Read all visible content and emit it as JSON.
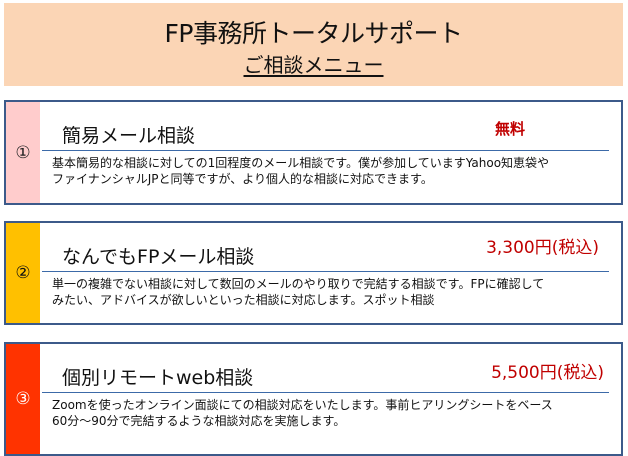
{
  "header": {
    "title": "FP事務所トータルサポート",
    "subtitle": "ご相談メニュー",
    "background": "#fbd5b5"
  },
  "menu": [
    {
      "number": "①",
      "stripe_color": "#ffcccc",
      "heading": "簡易メール相談",
      "price": "無料",
      "description": [
        "基本簡易的な相談に対しての1回程度のメール相談です。僕が参加していますYahoo知恵袋や",
        "ファイナンシャルJPと同等ですが、より個人的な相談に対応できます。"
      ]
    },
    {
      "number": "②",
      "stripe_color": "#ffc000",
      "heading": "なんでもFPメール相談",
      "price": "3,300円(税込)",
      "description": [
        "単一の複雑でない相談に対して数回のメールのやり取りで完結する相談です。FPに確認して",
        "みたい、アドバイスが欲しいといった相談に対応します。スポット相談"
      ]
    },
    {
      "number": "③",
      "stripe_color": "#ff3300",
      "heading": "個別リモートweb相談",
      "price": "5,500円(税込)",
      "description": [
        "Zoomを使ったオンライン面談にての相談対応をいたします。事前ヒアリングシートをベース",
        "60分～90分で完結するような相談対応を実施します。"
      ]
    }
  ],
  "price_color": "#c00000",
  "border_color": "#3c5a8a"
}
